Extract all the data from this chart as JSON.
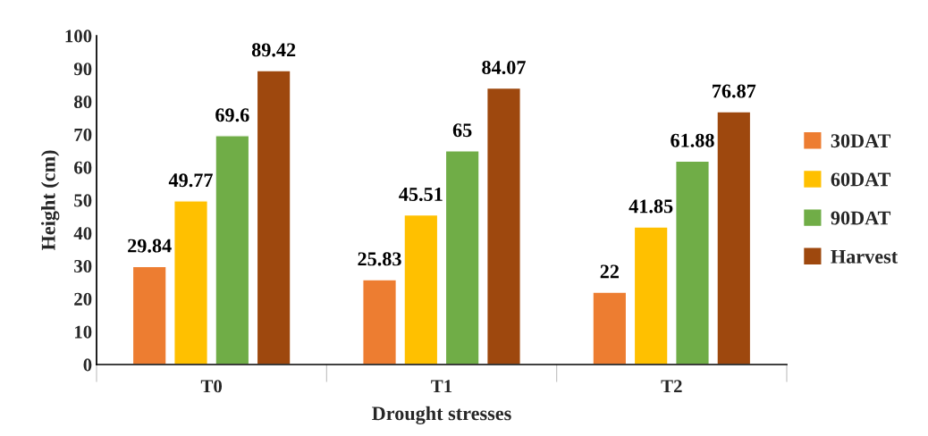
{
  "chart_data": {
    "type": "bar",
    "xlabel": "Drought stresses",
    "ylabel": "Height (cm)",
    "categories": [
      "T0",
      "T1",
      "T2"
    ],
    "series": [
      {
        "name": "30DAT",
        "color": "#ed7d31",
        "values": [
          29.84,
          25.83,
          22
        ]
      },
      {
        "name": "60DAT",
        "color": "#ffc000",
        "values": [
          49.77,
          45.51,
          41.85
        ]
      },
      {
        "name": "90DAT",
        "color": "#70ad47",
        "values": [
          69.6,
          65,
          61.88
        ]
      },
      {
        "name": "Harvest",
        "color": "#9e480e",
        "values": [
          89.42,
          84.07,
          76.87
        ]
      }
    ],
    "ylim": [
      0,
      100
    ],
    "yticks": [
      0,
      10,
      20,
      30,
      40,
      50,
      60,
      70,
      80,
      90,
      100
    ],
    "grid": false,
    "legend": "right",
    "data_labels": true
  }
}
